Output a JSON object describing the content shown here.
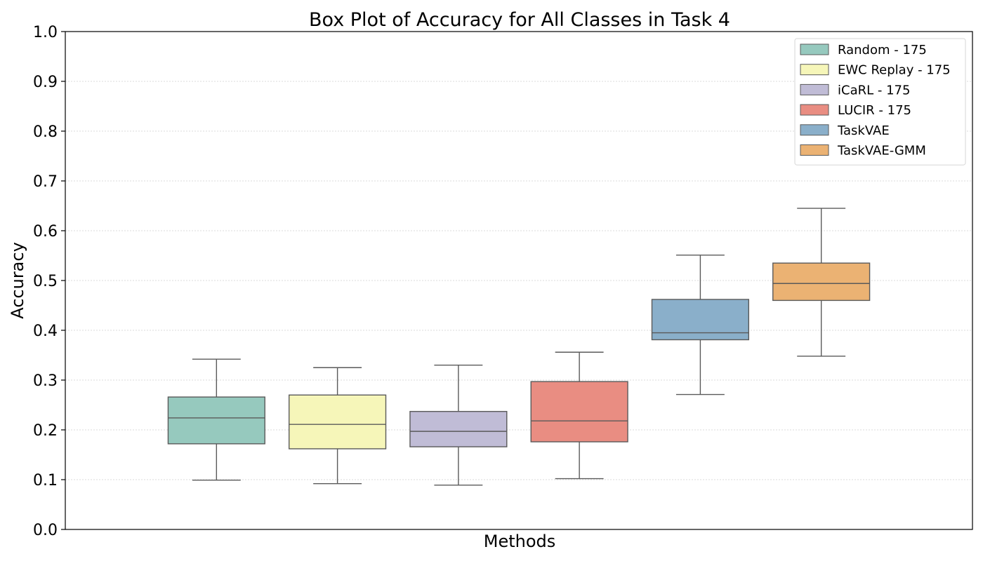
{
  "chart_data": {
    "type": "box",
    "title": "Box Plot of Accuracy for All Classes in Task 4",
    "xlabel": "Methods",
    "ylabel": "Accuracy",
    "ylim": [
      0.0,
      1.0
    ],
    "yticks": [
      0.0,
      0.1,
      0.2,
      0.3,
      0.4,
      0.5,
      0.6,
      0.7,
      0.8,
      0.9,
      1.0
    ],
    "ytick_labels": [
      "0.0",
      "0.1",
      "0.2",
      "0.3",
      "0.4",
      "0.5",
      "0.6",
      "0.7",
      "0.8",
      "0.9",
      "1.0"
    ],
    "grid": "y-dotted",
    "legend_position": "top-right",
    "series": [
      {
        "name": "Random - 175",
        "color": "#96c9be",
        "whisker_low": 0.099,
        "q1": 0.172,
        "median": 0.224,
        "q3": 0.266,
        "whisker_high": 0.342
      },
      {
        "name": "EWC Replay - 175",
        "color": "#f6f6b9",
        "whisker_low": 0.092,
        "q1": 0.162,
        "median": 0.211,
        "q3": 0.27,
        "whisker_high": 0.325
      },
      {
        "name": "iCaRL - 175",
        "color": "#c0bcd6",
        "whisker_low": 0.089,
        "q1": 0.166,
        "median": 0.197,
        "q3": 0.237,
        "whisker_high": 0.33
      },
      {
        "name": "LUCIR - 175",
        "color": "#e98d82",
        "whisker_low": 0.102,
        "q1": 0.176,
        "median": 0.218,
        "q3": 0.297,
        "whisker_high": 0.356
      },
      {
        "name": "TaskVAE",
        "color": "#8aafca",
        "whisker_low": 0.271,
        "q1": 0.381,
        "median": 0.395,
        "q3": 0.462,
        "whisker_high": 0.551
      },
      {
        "name": "TaskVAE-GMM",
        "color": "#ebb273",
        "whisker_low": 0.348,
        "q1": 0.46,
        "median": 0.494,
        "q3": 0.535,
        "whisker_high": 0.645
      }
    ]
  }
}
